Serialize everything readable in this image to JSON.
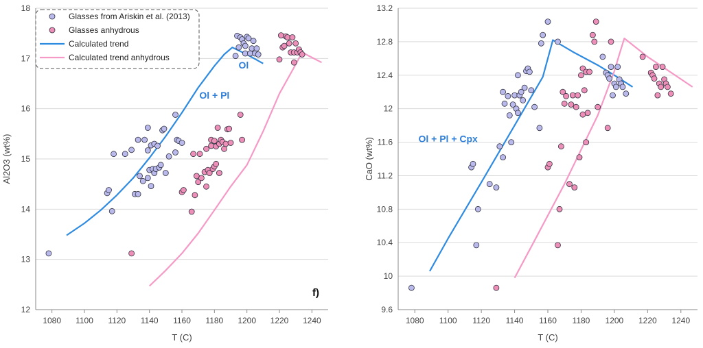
{
  "colors": {
    "glasses": "#b9b9ec",
    "glasses_anhydrous": "#ee8fb8",
    "trend": "#2f8be0",
    "trend_anhydrous": "#f59ac6",
    "annotation": "#2f7fd8",
    "axis": "#8a8a8a",
    "grid": "#d9d9d9"
  },
  "legend": {
    "glasses": "Glasses from Ariskin et al. (2013)",
    "glasses_anhydrous": "Glasses anhydrous",
    "trend": "Calculated trend",
    "trend_anhydrous": "Calculated trend anhydrous"
  },
  "chart_data": [
    {
      "type": "scatter",
      "panel_label": "f)",
      "xlabel": "T (C)",
      "ylabel": "Al2O3 (wt%)",
      "xlim": [
        1070,
        1250
      ],
      "ylim": [
        12,
        18
      ],
      "xticks": [
        1080,
        1100,
        1120,
        1140,
        1160,
        1180,
        1200,
        1220,
        1240
      ],
      "yticks": [
        12,
        13,
        14,
        15,
        16,
        17,
        18
      ],
      "grid": true,
      "legend_position": "top-left",
      "annotations": [
        {
          "text": "Ol + Pl",
          "x": 1180,
          "y": 16.2
        },
        {
          "text": "Ol",
          "x": 1198,
          "y": 16.8
        }
      ],
      "series": [
        {
          "name": "Glasses from Ariskin et al. (2013)",
          "kind": "points",
          "color_key": "glasses",
          "points": [
            [
              1078,
              13.12
            ],
            [
              1114,
              14.32
            ],
            [
              1115,
              14.38
            ],
            [
              1117,
              13.96
            ],
            [
              1118,
              15.1
            ],
            [
              1125,
              15.1
            ],
            [
              1129,
              15.18
            ],
            [
              1131,
              14.3
            ],
            [
              1133,
              14.3
            ],
            [
              1133,
              15.38
            ],
            [
              1134,
              14.66
            ],
            [
              1136,
              14.56
            ],
            [
              1137,
              15.38
            ],
            [
              1139,
              15.62
            ],
            [
              1139,
              15.17
            ],
            [
              1139,
              14.62
            ],
            [
              1140,
              14.78
            ],
            [
              1141,
              14.46
            ],
            [
              1141,
              15.27
            ],
            [
              1142,
              14.8
            ],
            [
              1143,
              15.3
            ],
            [
              1143,
              14.72
            ],
            [
              1144,
              14.8
            ],
            [
              1145,
              15.26
            ],
            [
              1146,
              14.83
            ],
            [
              1147,
              14.88
            ],
            [
              1148,
              15.57
            ],
            [
              1149,
              15.6
            ],
            [
              1150,
              14.72
            ],
            [
              1152,
              15.05
            ],
            [
              1156,
              15.13
            ],
            [
              1156,
              15.88
            ],
            [
              1157,
              15.38
            ],
            [
              1158,
              15.36
            ],
            [
              1160,
              15.32
            ],
            [
              1193,
              17.05
            ],
            [
              1194,
              17.45
            ],
            [
              1195,
              17.22
            ],
            [
              1196,
              17.42
            ],
            [
              1197,
              17.38
            ],
            [
              1198,
              17.3
            ],
            [
              1199,
              17.25
            ],
            [
              1199,
              17.1
            ],
            [
              1200,
              17.43
            ],
            [
              1201,
              17.4
            ],
            [
              1202,
              17.1
            ],
            [
              1203,
              17.2
            ],
            [
              1204,
              17.35
            ],
            [
              1205,
              17.1
            ],
            [
              1206,
              17.2
            ],
            [
              1207,
              17.08
            ]
          ]
        },
        {
          "name": "Glasses anhydrous",
          "kind": "points",
          "color_key": "glasses_anhydrous",
          "points": [
            [
              1129,
              13.12
            ],
            [
              1160,
              14.34
            ],
            [
              1161,
              14.38
            ],
            [
              1166,
              13.95
            ],
            [
              1167,
              15.1
            ],
            [
              1168,
              14.28
            ],
            [
              1169,
              14.66
            ],
            [
              1170,
              14.54
            ],
            [
              1171,
              15.1
            ],
            [
              1172,
              14.62
            ],
            [
              1174,
              14.74
            ],
            [
              1175,
              14.45
            ],
            [
              1175,
              15.2
            ],
            [
              1176,
              14.78
            ],
            [
              1177,
              14.72
            ],
            [
              1178,
              15.38
            ],
            [
              1178,
              15.26
            ],
            [
              1179,
              14.8
            ],
            [
              1180,
              14.85
            ],
            [
              1180,
              15.36
            ],
            [
              1181,
              15.25
            ],
            [
              1181,
              14.9
            ],
            [
              1182,
              15.62
            ],
            [
              1183,
              15.3
            ],
            [
              1183,
              14.72
            ],
            [
              1184,
              15.38
            ],
            [
              1185,
              15.34
            ],
            [
              1186,
              15.2
            ],
            [
              1187,
              15.3
            ],
            [
              1188,
              15.59
            ],
            [
              1189,
              15.6
            ],
            [
              1190,
              15.32
            ],
            [
              1196,
              15.88
            ],
            [
              1197,
              15.38
            ],
            [
              1220,
              16.98
            ],
            [
              1221,
              17.46
            ],
            [
              1222,
              17.22
            ],
            [
              1223,
              17.25
            ],
            [
              1224,
              17.44
            ],
            [
              1225,
              17.42
            ],
            [
              1226,
              17.3
            ],
            [
              1227,
              17.12
            ],
            [
              1228,
              17.42
            ],
            [
              1229,
              17.12
            ],
            [
              1229,
              16.92
            ],
            [
              1230,
              17.3
            ],
            [
              1231,
              17.12
            ],
            [
              1232,
              17.18
            ],
            [
              1233,
              17.12
            ],
            [
              1234,
              17.08
            ]
          ]
        },
        {
          "name": "Calculated trend",
          "kind": "line",
          "color_key": "trend",
          "points": [
            [
              1089,
              13.48
            ],
            [
              1100,
              13.72
            ],
            [
              1110,
              13.98
            ],
            [
              1120,
              14.28
            ],
            [
              1130,
              14.62
            ],
            [
              1140,
              15.02
            ],
            [
              1150,
              15.45
            ],
            [
              1160,
              15.92
            ],
            [
              1170,
              16.42
            ],
            [
              1180,
              16.85
            ],
            [
              1186,
              17.08
            ],
            [
              1191,
              17.22
            ],
            [
              1200,
              17.08
            ],
            [
              1210,
              16.9
            ]
          ]
        },
        {
          "name": "Calculated trend anhydrous",
          "kind": "line",
          "color_key": "trend_anhydrous",
          "points": [
            [
              1140,
              12.47
            ],
            [
              1150,
              12.78
            ],
            [
              1160,
              13.12
            ],
            [
              1170,
              13.52
            ],
            [
              1180,
              13.98
            ],
            [
              1190,
              14.45
            ],
            [
              1200,
              14.88
            ],
            [
              1210,
              15.55
            ],
            [
              1220,
              16.3
            ],
            [
              1230,
              16.88
            ],
            [
              1234,
              17.12
            ],
            [
              1240,
              17.02
            ],
            [
              1246,
              16.92
            ]
          ]
        }
      ]
    },
    {
      "type": "scatter",
      "xlabel": "T (C)",
      "ylabel": "CaO (wt%)",
      "xlim": [
        1070,
        1250
      ],
      "ylim": [
        9.6,
        13.2
      ],
      "xticks": [
        1080,
        1100,
        1120,
        1140,
        1160,
        1180,
        1200,
        1220,
        1240
      ],
      "yticks": [
        9.6,
        10,
        10.4,
        10.8,
        11.2,
        11.6,
        12,
        12.4,
        12.8,
        13.2
      ],
      "grid": true,
      "annotations": [
        {
          "text": "Ol + Pl + Cpx",
          "x": 1100,
          "y": 11.6
        }
      ],
      "series": [
        {
          "name": "Glasses from Ariskin et al. (2013)",
          "kind": "points",
          "color_key": "glasses",
          "points": [
            [
              1078,
              9.86
            ],
            [
              1114,
              11.3
            ],
            [
              1115,
              11.34
            ],
            [
              1117,
              10.37
            ],
            [
              1118,
              10.8
            ],
            [
              1125,
              11.1
            ],
            [
              1129,
              11.06
            ],
            [
              1131,
              11.55
            ],
            [
              1133,
              11.42
            ],
            [
              1133,
              12.2
            ],
            [
              1134,
              12.06
            ],
            [
              1136,
              12.15
            ],
            [
              1137,
              11.92
            ],
            [
              1138,
              11.6
            ],
            [
              1139,
              12.05
            ],
            [
              1140,
              12.16
            ],
            [
              1141,
              12.0
            ],
            [
              1142,
              11.95
            ],
            [
              1142,
              12.4
            ],
            [
              1143,
              12.16
            ],
            [
              1144,
              12.2
            ],
            [
              1145,
              12.1
            ],
            [
              1146,
              12.25
            ],
            [
              1147,
              12.45
            ],
            [
              1148,
              12.48
            ],
            [
              1149,
              12.44
            ],
            [
              1150,
              12.22
            ],
            [
              1152,
              12.02
            ],
            [
              1155,
              11.77
            ],
            [
              1156,
              12.78
            ],
            [
              1157,
              12.88
            ],
            [
              1160,
              13.04
            ],
            [
              1166,
              12.8
            ],
            [
              1193,
              12.62
            ],
            [
              1195,
              12.43
            ],
            [
              1196,
              12.4
            ],
            [
              1197,
              12.36
            ],
            [
              1198,
              12.5
            ],
            [
              1199,
              12.16
            ],
            [
              1200,
              12.3
            ],
            [
              1201,
              12.26
            ],
            [
              1202,
              12.5
            ],
            [
              1203,
              12.35
            ],
            [
              1204,
              12.3
            ],
            [
              1205,
              12.26
            ],
            [
              1207,
              12.18
            ]
          ]
        },
        {
          "name": "Glasses anhydrous",
          "kind": "points",
          "color_key": "glasses_anhydrous",
          "points": [
            [
              1129,
              9.86
            ],
            [
              1160,
              11.3
            ],
            [
              1161,
              11.34
            ],
            [
              1166,
              10.37
            ],
            [
              1167,
              10.8
            ],
            [
              1168,
              11.55
            ],
            [
              1169,
              12.2
            ],
            [
              1170,
              12.06
            ],
            [
              1171,
              12.15
            ],
            [
              1173,
              11.1
            ],
            [
              1174,
              12.05
            ],
            [
              1175,
              12.16
            ],
            [
              1176,
              11.06
            ],
            [
              1177,
              12.02
            ],
            [
              1178,
              12.16
            ],
            [
              1179,
              11.42
            ],
            [
              1180,
              12.4
            ],
            [
              1181,
              12.48
            ],
            [
              1181,
              11.93
            ],
            [
              1182,
              12.22
            ],
            [
              1183,
              12.44
            ],
            [
              1183,
              11.6
            ],
            [
              1184,
              11.95
            ],
            [
              1185,
              12.44
            ],
            [
              1187,
              12.88
            ],
            [
              1188,
              12.8
            ],
            [
              1189,
              13.04
            ],
            [
              1190,
              12.02
            ],
            [
              1196,
              11.77
            ],
            [
              1198,
              12.8
            ],
            [
              1217,
              12.62
            ],
            [
              1222,
              12.43
            ],
            [
              1223,
              12.4
            ],
            [
              1224,
              12.36
            ],
            [
              1225,
              12.5
            ],
            [
              1226,
              12.16
            ],
            [
              1227,
              12.3
            ],
            [
              1228,
              12.26
            ],
            [
              1229,
              12.5
            ],
            [
              1230,
              12.35
            ],
            [
              1231,
              12.3
            ],
            [
              1232,
              12.26
            ],
            [
              1234,
              12.18
            ]
          ]
        },
        {
          "name": "Calculated trend",
          "kind": "line",
          "color_key": "trend",
          "points": [
            [
              1089,
              10.06
            ],
            [
              1100,
              10.45
            ],
            [
              1120,
              11.12
            ],
            [
              1140,
              11.8
            ],
            [
              1157,
              12.38
            ],
            [
              1163,
              12.82
            ],
            [
              1175,
              12.68
            ],
            [
              1190,
              12.52
            ],
            [
              1200,
              12.4
            ],
            [
              1211,
              12.26
            ]
          ]
        },
        {
          "name": "Calculated trend anhydrous",
          "kind": "line",
          "color_key": "trend_anhydrous",
          "points": [
            [
              1140,
              9.98
            ],
            [
              1150,
              10.35
            ],
            [
              1170,
              11.1
            ],
            [
              1190,
              11.92
            ],
            [
              1200,
              12.45
            ],
            [
              1203,
              12.65
            ],
            [
              1206,
              12.84
            ],
            [
              1220,
              12.62
            ],
            [
              1235,
              12.42
            ],
            [
              1247,
              12.26
            ]
          ]
        }
      ]
    }
  ]
}
